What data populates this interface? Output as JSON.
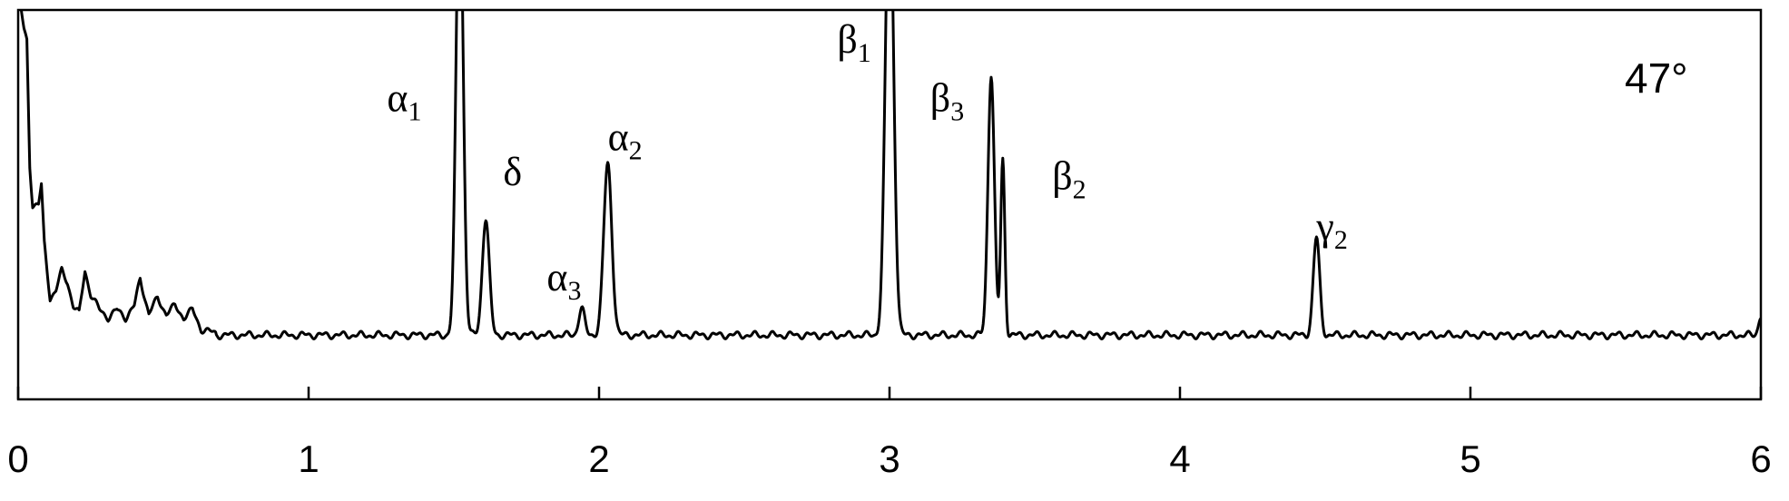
{
  "chart_data": {
    "type": "line",
    "title": "",
    "xlabel": "",
    "ylabel": "",
    "xlim": [
      0,
      6
    ],
    "ylim": [
      0,
      1
    ],
    "grid": false,
    "legend": "none",
    "x_ticks": [
      0,
      1,
      2,
      3,
      4,
      5,
      6
    ],
    "x_tick_labels": [
      "0",
      "1",
      "2",
      "3",
      "4",
      "5",
      "6"
    ],
    "annotation": "47°",
    "line_color": "#000000",
    "baseline": 0.165,
    "peaks": [
      {
        "x": 1.52,
        "height": 1.2,
        "width": 0.012
      },
      {
        "x": 1.61,
        "height": 0.3,
        "width": 0.012
      },
      {
        "x": 1.94,
        "height": 0.07,
        "width": 0.01
      },
      {
        "x": 2.03,
        "height": 0.44,
        "width": 0.014
      },
      {
        "x": 3.0,
        "height": 1.2,
        "width": 0.014
      },
      {
        "x": 3.35,
        "height": 0.67,
        "width": 0.011
      },
      {
        "x": 3.39,
        "height": 0.45,
        "width": 0.007
      },
      {
        "x": 4.47,
        "height": 0.25,
        "width": 0.011
      },
      {
        "x": 6.0,
        "height": 0.05,
        "width": 0.008
      }
    ],
    "low_region": [
      {
        "x": 0.0,
        "y": 1.05
      },
      {
        "x": 0.02,
        "y": 0.95
      },
      {
        "x": 0.03,
        "y": 0.92
      },
      {
        "x": 0.04,
        "y": 0.6
      },
      {
        "x": 0.05,
        "y": 0.5
      },
      {
        "x": 0.06,
        "y": 0.5
      },
      {
        "x": 0.07,
        "y": 0.5
      },
      {
        "x": 0.08,
        "y": 0.55
      },
      {
        "x": 0.09,
        "y": 0.4
      },
      {
        "x": 0.11,
        "y": 0.26
      },
      {
        "x": 0.13,
        "y": 0.28
      },
      {
        "x": 0.15,
        "y": 0.33
      },
      {
        "x": 0.17,
        "y": 0.3
      },
      {
        "x": 0.19,
        "y": 0.24
      },
      {
        "x": 0.21,
        "y": 0.22
      },
      {
        "x": 0.23,
        "y": 0.33
      },
      {
        "x": 0.25,
        "y": 0.27
      },
      {
        "x": 0.28,
        "y": 0.23
      },
      {
        "x": 0.31,
        "y": 0.21
      },
      {
        "x": 0.34,
        "y": 0.23
      },
      {
        "x": 0.37,
        "y": 0.21
      },
      {
        "x": 0.4,
        "y": 0.24
      },
      {
        "x": 0.42,
        "y": 0.31
      },
      {
        "x": 0.45,
        "y": 0.22
      },
      {
        "x": 0.48,
        "y": 0.26
      },
      {
        "x": 0.51,
        "y": 0.22
      },
      {
        "x": 0.54,
        "y": 0.24
      },
      {
        "x": 0.57,
        "y": 0.21
      },
      {
        "x": 0.6,
        "y": 0.23
      },
      {
        "x": 0.63,
        "y": 0.18
      },
      {
        "x": 0.68,
        "y": 0.17
      }
    ],
    "peak_labels": [
      {
        "symbol": "α",
        "sub": "1",
        "x": 1.27,
        "y": 0.74
      },
      {
        "symbol": "δ",
        "sub": "",
        "x": 1.67,
        "y": 0.55
      },
      {
        "symbol": "α",
        "sub": "3",
        "x": 1.82,
        "y": 0.28
      },
      {
        "symbol": "α",
        "sub": "2",
        "x": 2.03,
        "y": 0.64
      },
      {
        "symbol": "β",
        "sub": "1",
        "x": 2.82,
        "y": 0.89
      },
      {
        "symbol": "β",
        "sub": "3",
        "x": 3.14,
        "y": 0.74
      },
      {
        "symbol": "β",
        "sub": "2",
        "x": 3.56,
        "y": 0.54
      },
      {
        "symbol": "γ",
        "sub": "2",
        "x": 4.47,
        "y": 0.41
      }
    ]
  }
}
